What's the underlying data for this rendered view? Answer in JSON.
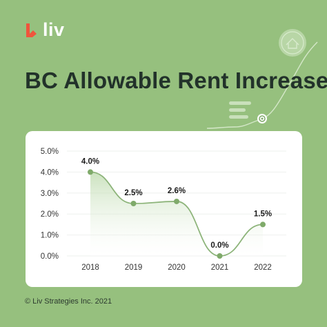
{
  "brand": {
    "name": "liv",
    "logo_color": "#f0543c",
    "logo_icon": "liv-logo-icon"
  },
  "header": {
    "title": "BC Allowable Rent Increase"
  },
  "footer": {
    "copyright": "© Liv Strategies Inc. 2021"
  },
  "colors": {
    "background": "#96c07e",
    "card": "#ffffff",
    "line": "#8db47a",
    "point": "#7faa6a",
    "fill_top": "#b9d8a8",
    "title": "#22322a"
  },
  "decorations": {
    "icons": [
      "house-coin-icon",
      "menu-lines-icon",
      "target-point-icon",
      "trend-line-icon"
    ]
  },
  "chart_data": {
    "type": "line",
    "title": "",
    "xlabel": "",
    "ylabel": "",
    "categories": [
      "2018",
      "2019",
      "2020",
      "2021",
      "2022"
    ],
    "values": [
      4.0,
      2.5,
      2.6,
      0.0,
      1.5
    ],
    "data_labels": [
      "4.0%",
      "2.5%",
      "2.6%",
      "0.0%",
      "1.5%"
    ],
    "yticks": [
      0,
      1,
      2,
      3,
      4,
      5
    ],
    "ytick_labels": [
      "0.0%",
      "1.0%",
      "2.0%",
      "3.0%",
      "4.0%",
      "5.0%"
    ],
    "ylim": [
      0,
      5
    ],
    "grid": true,
    "area_fill": true,
    "smooth": true
  }
}
